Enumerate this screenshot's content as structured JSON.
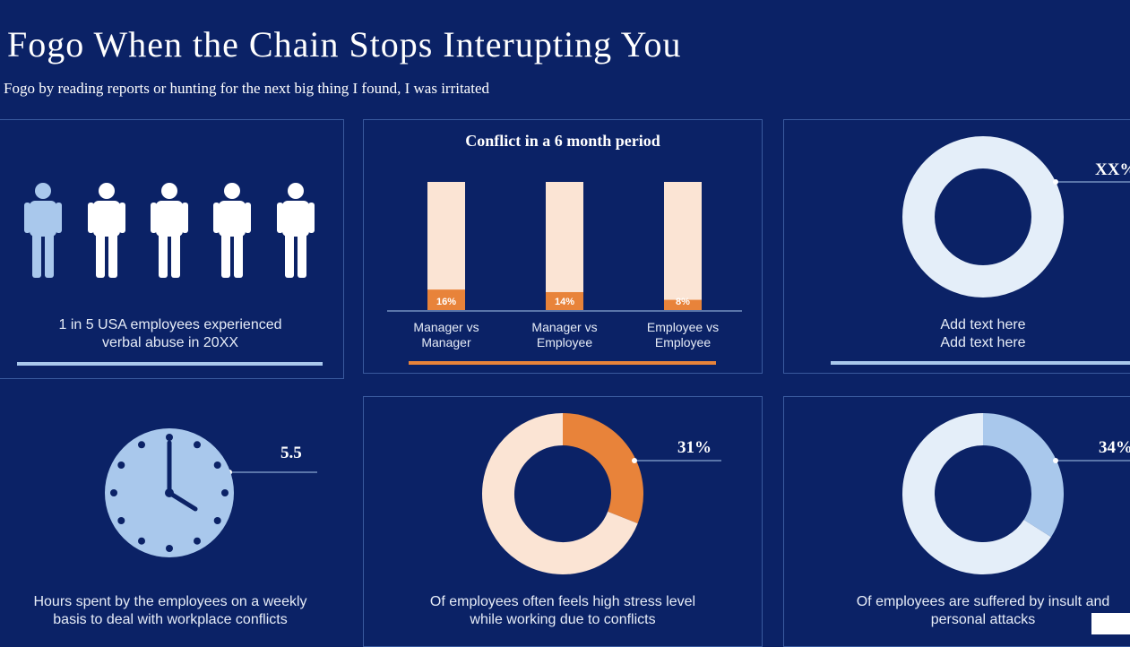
{
  "header": {
    "title": "Fogo When the Chain Stops Interupting You",
    "subtitle": "Fogo by reading reports or hunting for the next big thing I found, I was irritated"
  },
  "colors": {
    "background": "#0b2266",
    "panel_border": "#3a5a9e",
    "light_blue": "#a9c8ec",
    "pale_blue": "#e4eef9",
    "orange": "#e8833a",
    "cream": "#fbe4d4",
    "white": "#ffffff"
  },
  "panels": {
    "people": {
      "icon": "person-icon",
      "highlighted_count": 1,
      "total_count": 5,
      "caption_line1": "1 in 5 USA employees experienced",
      "caption_line2": "verbal abuse in 20XX"
    },
    "bars": {
      "caption": ""
    },
    "donut_top": {
      "callout": "XX%",
      "caption_line1": "Add text here",
      "caption_line2": "Add text here"
    },
    "clock": {
      "icon": "clock-icon",
      "callout": "5.5",
      "caption_line1": "Hours spent by the employees on a weekly",
      "caption_line2": "basis to deal with workplace conflicts"
    },
    "donut_stress": {
      "callout": "31%",
      "caption_line1": "Of employees often feels high stress level",
      "caption_line2": "while working due to conflicts"
    },
    "donut_insult": {
      "callout": "34%",
      "caption_line1": "Of employees are suffered by insult and",
      "caption_line2": "personal attacks"
    }
  },
  "chart_data": [
    {
      "type": "bar",
      "title": "Conflict in a 6 month period",
      "categories": [
        "Manager vs Manager",
        "Manager vs Employee",
        "Employee vs Employee"
      ],
      "category_lines": [
        [
          "Manager vs",
          "Manager"
        ],
        [
          "Manager vs",
          "Employee"
        ],
        [
          "Employee vs",
          "Employee"
        ]
      ],
      "values": [
        16,
        14,
        8
      ],
      "value_labels": [
        "16%",
        "14%",
        "8%"
      ],
      "ylim": [
        0,
        100
      ],
      "bar_color": "#e8833a",
      "track_color": "#fbe4d4"
    },
    {
      "type": "pie",
      "title": "",
      "values": [
        31,
        69
      ],
      "labels": [
        "31%",
        ""
      ],
      "colors": [
        "#e8833a",
        "#fbe4d4"
      ]
    },
    {
      "type": "pie",
      "title": "",
      "values": [
        34,
        66
      ],
      "labels": [
        "34%",
        ""
      ],
      "colors": [
        "#a9c8ec",
        "#e4eef9"
      ]
    }
  ]
}
